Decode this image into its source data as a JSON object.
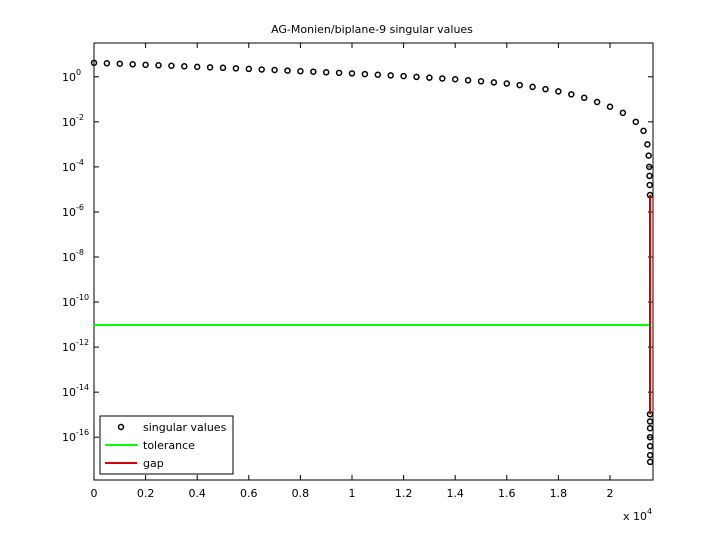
{
  "chart_data": {
    "type": "line",
    "title": "AG-Monien/biplane-9 singular values",
    "log_y": true,
    "legend_position": "lower left",
    "x_multiplier": "x 10",
    "x_multiplier_exponent": "4",
    "xlim": [
      0,
      21667
    ],
    "ylim": [
      1.26e-18,
      31.6
    ],
    "xticks": [
      0,
      {
        "value": 2000,
        "label": "0.2"
      },
      {
        "value": 4000,
        "label": "0.4"
      },
      {
        "value": 6000,
        "label": "0.6"
      },
      {
        "value": 8000,
        "label": "0.8"
      },
      {
        "value": 10000,
        "label": "1"
      },
      {
        "value": 12000,
        "label": "1.2"
      },
      {
        "value": 14000,
        "label": "1.4"
      },
      {
        "value": 16000,
        "label": "1.6"
      },
      {
        "value": 18000,
        "label": "1.8"
      },
      {
        "value": 20000,
        "label": "2"
      }
    ],
    "yticks": [
      {
        "value": 1,
        "label": "10",
        "exponent": "0"
      },
      {
        "value": 0.01,
        "label": "10",
        "exponent": "-2"
      },
      {
        "value": 0.0001,
        "label": "10",
        "exponent": "-4"
      },
      {
        "value": 1e-06,
        "label": "10",
        "exponent": "-6"
      },
      {
        "value": 1e-08,
        "label": "10",
        "exponent": "-8"
      },
      {
        "value": 1e-10,
        "label": "10",
        "exponent": "-10"
      },
      {
        "value": 1e-12,
        "label": "10",
        "exponent": "-12"
      },
      {
        "value": 1e-14,
        "label": "10",
        "exponent": "-14"
      },
      {
        "value": 1e-16,
        "label": "10",
        "exponent": "-16"
      }
    ],
    "series": [
      {
        "name": "singular values",
        "style": "markers",
        "color": "#000000",
        "x": [
          0,
          500,
          1000,
          1500,
          2000,
          2500,
          3000,
          3500,
          4000,
          4500,
          5000,
          5500,
          6000,
          6500,
          7000,
          7500,
          8000,
          8500,
          9000,
          9500,
          10000,
          10500,
          11000,
          11500,
          12000,
          12500,
          13000,
          13500,
          14000,
          14500,
          15000,
          15500,
          16000,
          16500,
          17000,
          17500,
          18000,
          18500,
          19000,
          19500,
          20000,
          20500,
          21000,
          21300,
          21450,
          21500,
          21520,
          21530,
          21540,
          21550,
          21550,
          21551,
          21552,
          21553,
          21554,
          21555,
          21556
        ],
        "values": [
          4.17,
          3.98,
          3.8,
          3.59,
          3.39,
          3.24,
          3.09,
          2.92,
          2.75,
          2.63,
          2.51,
          2.37,
          2.24,
          2.11,
          2.0,
          1.88,
          1.78,
          1.68,
          1.58,
          1.5,
          1.41,
          1.32,
          1.23,
          1.15,
          1.07,
          0.989,
          0.912,
          0.841,
          0.776,
          0.7,
          0.631,
          0.562,
          0.501,
          0.427,
          0.355,
          0.282,
          0.224,
          0.166,
          0.117,
          0.0759,
          0.0468,
          0.0251,
          0.01,
          0.00398,
          0.001,
          0.000316,
          0.0001,
          3.98e-05,
          1.58e-05,
          5.62e-06,
          1.05e-15,
          5e-16,
          2.5e-16,
          1e-16,
          4e-17,
          1.6e-17,
          8e-18
        ]
      },
      {
        "name": "tolerance",
        "style": "line",
        "color": "#00ff00",
        "x": [
          0,
          21556
        ],
        "values": [
          9.6e-12,
          9.6e-12
        ]
      },
      {
        "name": "gap",
        "style": "line",
        "color": "#cc0000",
        "x": [
          21550,
          21550
        ],
        "values": [
          5.62e-06,
          1.05e-15
        ]
      }
    ]
  }
}
